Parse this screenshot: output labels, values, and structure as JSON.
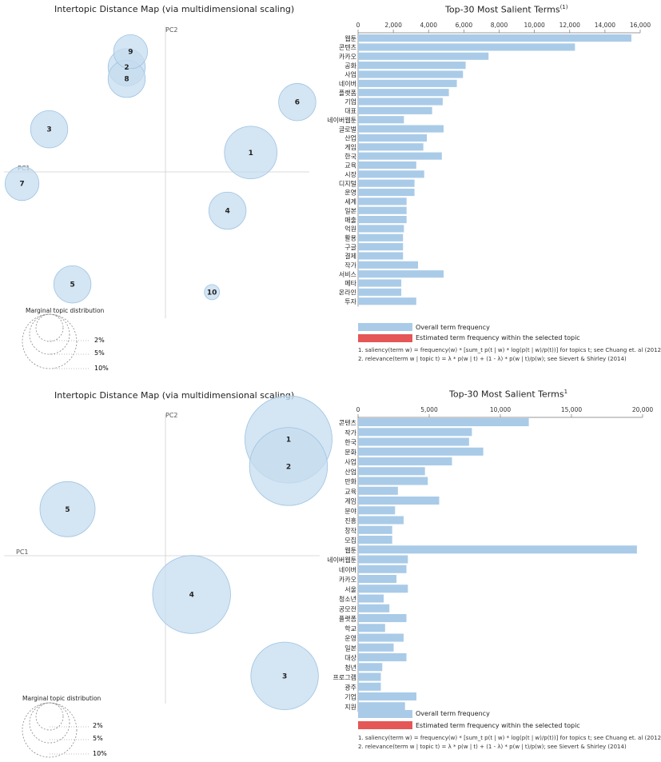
{
  "panels": [
    {
      "mds": {
        "title": "Intertopic Distance Map (via multidimensional scaling)",
        "pc1_label": "PC1",
        "pc2_label": "PC2",
        "topics": [
          "1",
          "2",
          "3",
          "4",
          "5",
          "6",
          "7",
          "8",
          "9",
          "10"
        ]
      },
      "marginal": {
        "title": "Marginal topic distribution",
        "labels": [
          "2%",
          "5%",
          "10%"
        ]
      },
      "bars": {
        "title": "Top-30 Most Salient Terms",
        "title_sup": "(1)",
        "legend_overall": "Overall term frequency",
        "legend_topic": "Estimated term frequency within the selected topic",
        "note1": "1. saliency(term w) = frequency(w) * [sum_t p(t | w) * log(p(t | w)/p(t))] for topics t; see Chuang et. al (2012)",
        "note2": "2. relevance(term w | topic t) = λ * p(w | t) + (1 - λ) * p(w | t)/p(w); see Sievert & Shirley (2014)"
      }
    },
    {
      "mds": {
        "title": "Intertopic Distance Map (via multidimensional scaling)",
        "pc1_label": "PC1",
        "pc2_label": "PC2",
        "topics": [
          "1",
          "2",
          "3",
          "4",
          "5"
        ]
      },
      "marginal": {
        "title": "Marginal topic distribution",
        "labels": [
          "2%",
          "5%",
          "10%"
        ]
      },
      "bars": {
        "title": "Top-30 Most Salient Terms",
        "title_sup": "1",
        "legend_overall": "Overall term frequency",
        "legend_topic": "Estimated term frequency within the selected topic",
        "note1": "1. saliency(term w) = frequency(w) * [sum_t p(t | w) * log(p(t | w)/p(t))] for topics t; see Chuang et. al (2012)",
        "note2": "2. relevance(term w | topic t) = λ * p(w | t) + (1 - λ) * p(w | t)/p(w); see Sievert & Shirley (2014)"
      }
    }
  ],
  "colors": {
    "bubble_fill": "#c6dcef",
    "bubble_stroke": "#9ec3e3",
    "bar": "#a9cbe8",
    "topic_bar": "#e45756",
    "axis": "#bbbbbb"
  },
  "chart_data": [
    {
      "type": "bar",
      "orientation": "horizontal",
      "title": "Top-30 Most Salient Terms",
      "categories": [
        "웹툰",
        "콘텐츠",
        "카카오",
        "공화",
        "사업",
        "네이버",
        "플랫폼",
        "기업",
        "대표",
        "네이버웹툰",
        "글로벌",
        "산업",
        "게임",
        "한국",
        "교육",
        "시장",
        "디지털",
        "운영",
        "세계",
        "일본",
        "매출",
        "억원",
        "활용",
        "구글",
        "결제",
        "작가",
        "서비스",
        "메타",
        "온라인",
        "투자"
      ],
      "values": [
        15500,
        12300,
        7400,
        6100,
        5950,
        5600,
        5150,
        4800,
        4200,
        2600,
        4850,
        3900,
        3700,
        4750,
        3300,
        3750,
        3200,
        3200,
        2750,
        2750,
        2750,
        2600,
        2550,
        2550,
        2550,
        3400,
        4850,
        2450,
        2450,
        3300
      ],
      "xlim": [
        0,
        16000
      ],
      "xticks": [
        "0",
        "2,000",
        "4,000",
        "6,000",
        "8,000",
        "10,000",
        "12,000",
        "14,000",
        "16,000"
      ]
    },
    {
      "type": "bar",
      "orientation": "horizontal",
      "title": "Top-30 Most Salient Terms",
      "categories": [
        "콘텐츠",
        "작가",
        "한국",
        "문화",
        "사업",
        "산업",
        "만화",
        "교육",
        "게임",
        "분야",
        "진흥",
        "창작",
        "모집",
        "웹툰",
        "네이버웹툰",
        "네이버",
        "카카오",
        "서울",
        "청소년",
        "공모전",
        "플랫폼",
        "학교",
        "운영",
        "일본",
        "대상",
        "청년",
        "프로그램",
        "광주",
        "기업",
        "지원"
      ],
      "values": [
        12000,
        8000,
        7800,
        8800,
        6600,
        4700,
        4900,
        2800,
        5700,
        2600,
        3200,
        2400,
        2400,
        19600,
        3500,
        3400,
        2700,
        3500,
        1800,
        2200,
        3400,
        1900,
        3200,
        2500,
        3400,
        1700,
        1600,
        1600,
        4100,
        3300
      ],
      "xlim": [
        0,
        20000
      ],
      "xticks": [
        "0",
        "5,000",
        "10,000",
        "15,000",
        "20,000"
      ]
    },
    {
      "type": "scatter",
      "title": "Intertopic Distance Map (via multidimensional scaling)",
      "topics": [
        {
          "topic": "1",
          "pc1": 0.22,
          "pc2": 0.05,
          "share": 12
        },
        {
          "topic": "2",
          "pc1": -0.1,
          "pc2": 0.27,
          "share": 6
        },
        {
          "topic": "3",
          "pc1": -0.3,
          "pc2": 0.11,
          "share": 6
        },
        {
          "topic": "4",
          "pc1": 0.16,
          "pc2": -0.1,
          "share": 6
        },
        {
          "topic": "5",
          "pc1": -0.24,
          "pc2": -0.29,
          "share": 6
        },
        {
          "topic": "6",
          "pc1": 0.34,
          "pc2": 0.18,
          "share": 6
        },
        {
          "topic": "7",
          "pc1": -0.37,
          "pc2": -0.03,
          "share": 5
        },
        {
          "topic": "8",
          "pc1": -0.1,
          "pc2": 0.24,
          "share": 6
        },
        {
          "topic": "9",
          "pc1": -0.09,
          "pc2": 0.31,
          "share": 5
        },
        {
          "topic": "10",
          "pc1": 0.12,
          "pc2": -0.31,
          "share": 1
        }
      ]
    },
    {
      "type": "scatter",
      "title": "Intertopic Distance Map (via multidimensional scaling)",
      "topics": [
        {
          "topic": "1",
          "pc1": 0.27,
          "pc2": 0.3,
          "share": 20
        },
        {
          "topic": "2",
          "pc1": 0.27,
          "pc2": 0.23,
          "share": 16
        },
        {
          "topic": "3",
          "pc1": 0.26,
          "pc2": -0.31,
          "share": 12
        },
        {
          "topic": "4",
          "pc1": 0.02,
          "pc2": -0.1,
          "share": 16
        },
        {
          "topic": "5",
          "pc1": -0.3,
          "pc2": 0.12,
          "share": 8
        }
      ]
    }
  ]
}
